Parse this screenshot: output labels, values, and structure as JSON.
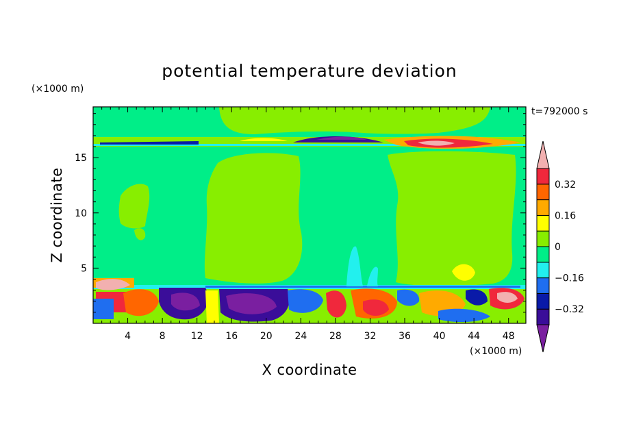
{
  "chart_data": {
    "type": "heatmap",
    "title": "potential temperature deviation",
    "xlabel": "X coordinate",
    "ylabel": "Z coordinate",
    "x_unit": "(×1000 m)",
    "y_unit": "(×1000 m)",
    "time_label": "t=792000 s",
    "xlim": [
      0,
      50
    ],
    "ylim": [
      0,
      19.6
    ],
    "x_ticks": [
      4,
      8,
      12,
      16,
      20,
      24,
      28,
      32,
      36,
      40,
      44,
      48
    ],
    "y_ticks": [
      5,
      10,
      15
    ],
    "colorbar": {
      "levels": [
        -0.4,
        -0.32,
        -0.24,
        -0.16,
        -0.08,
        0,
        0.08,
        0.16,
        0.24,
        0.32,
        0.4
      ],
      "labeled_levels": [
        0.32,
        0.16,
        0,
        -0.16,
        -0.32
      ],
      "level_labels": [
        "0.32",
        "0.16",
        "0",
        "−0.16",
        "−0.32"
      ],
      "colors_low_to_high": [
        "#7a1fa0",
        "#3a0d99",
        "#0a1aa8",
        "#1f6ef0",
        "#22f0ee",
        "#00ee88",
        "#88ee00",
        "#ffff00",
        "#ffaa00",
        "#ff6600",
        "#f0283c",
        "#f2b0b0"
      ],
      "extend": "both"
    },
    "features": [
      {
        "region": "background",
        "z_range": [
          0,
          19.6
        ],
        "value": "-0.08 to 0"
      },
      {
        "region": "upper green band",
        "x_range": [
          12,
          37
        ],
        "z_range": [
          17,
          19.6
        ],
        "value": "0 to 0.08"
      },
      {
        "region": "column A",
        "x_range": [
          13,
          24
        ],
        "z_range": [
          4,
          15.3
        ],
        "value": "0 to 0.08"
      },
      {
        "region": "column B",
        "x_range": [
          34,
          48
        ],
        "z_range": [
          4,
          15.3
        ],
        "value": "0 to 0.08"
      },
      {
        "region": "tropopause layer",
        "z_range": [
          16.4,
          16.9
        ],
        "value": "-0.4 to 0.4"
      },
      {
        "region": "boundary layer",
        "z_range": [
          0,
          3.5
        ],
        "value": "-0.4 to 0.4"
      }
    ]
  }
}
